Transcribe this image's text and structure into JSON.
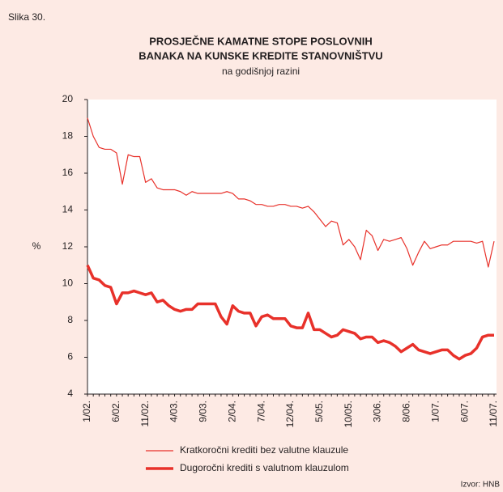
{
  "chart_data": {
    "type": "line",
    "label": "Slika 30.",
    "title": [
      "PROSJEČNE KAMATNE STOPE POSLOVNIH",
      "BANAKA NA KUNSKE KREDITE STANOVNIŠTVU"
    ],
    "subtitle": "na godišnjoj razini",
    "ylabel": "%",
    "source": "Izvor: HNB",
    "categories": [
      "1/02.",
      null,
      null,
      null,
      null,
      "6/02.",
      null,
      null,
      null,
      null,
      "11/02.",
      null,
      null,
      null,
      null,
      "4/03.",
      null,
      null,
      null,
      null,
      "9/03.",
      null,
      null,
      null,
      null,
      "2/04.",
      null,
      null,
      null,
      null,
      "7/04.",
      null,
      null,
      null,
      null,
      "12/04.",
      null,
      null,
      null,
      null,
      "5/05.",
      null,
      null,
      null,
      null,
      "10/05.",
      null,
      null,
      null,
      null,
      "3/06.",
      null,
      null,
      null,
      null,
      "8/06.",
      null,
      null,
      null,
      null,
      "1/07.",
      null,
      null,
      null,
      null,
      "6/07.",
      null,
      null,
      null,
      null,
      "11/07."
    ],
    "series": [
      {
        "name": "Kratkoročni krediti bez valutne klauzule",
        "color": "#e8312a",
        "width": 1.2,
        "values": [
          19.0,
          18.0,
          17.4,
          17.3,
          17.3,
          17.1,
          15.4,
          17.0,
          16.9,
          16.9,
          15.5,
          15.7,
          15.2,
          15.1,
          15.1,
          15.1,
          15.0,
          14.8,
          15.0,
          14.9,
          14.9,
          14.9,
          14.9,
          14.9,
          15.0,
          14.9,
          14.6,
          14.6,
          14.5,
          14.3,
          14.3,
          14.2,
          14.2,
          14.3,
          14.3,
          14.2,
          14.2,
          14.1,
          14.2,
          13.9,
          13.5,
          13.1,
          13.4,
          13.3,
          12.1,
          12.4,
          12.0,
          11.3,
          12.9,
          12.6,
          11.8,
          12.4,
          12.3,
          12.4,
          12.5,
          11.9,
          11.0,
          11.7,
          12.3,
          11.9,
          12.0,
          12.1,
          12.1,
          12.3,
          12.3,
          12.3,
          12.3,
          12.2,
          12.3,
          10.9,
          12.3
        ]
      },
      {
        "name": "Dugoročni krediti s valutnom klauzulom",
        "color": "#e8312a",
        "width": 3.5,
        "values": [
          11.0,
          10.3,
          10.2,
          9.9,
          9.8,
          8.9,
          9.5,
          9.5,
          9.6,
          9.5,
          9.4,
          9.5,
          9.0,
          9.1,
          8.8,
          8.6,
          8.5,
          8.6,
          8.6,
          8.9,
          8.9,
          8.9,
          8.9,
          8.2,
          7.8,
          8.8,
          8.5,
          8.4,
          8.4,
          7.7,
          8.2,
          8.3,
          8.1,
          8.1,
          8.1,
          7.7,
          7.6,
          7.6,
          8.4,
          7.5,
          7.5,
          7.3,
          7.1,
          7.2,
          7.5,
          7.4,
          7.3,
          7.0,
          7.1,
          7.1,
          6.8,
          6.9,
          6.8,
          6.6,
          6.3,
          6.5,
          6.7,
          6.4,
          6.3,
          6.2,
          6.3,
          6.4,
          6.4,
          6.1,
          5.9,
          6.1,
          6.2,
          6.5,
          7.1,
          7.2,
          7.2
        ]
      }
    ],
    "ylim": [
      4,
      20
    ],
    "yticks": [
      4,
      6,
      8,
      10,
      12,
      14,
      16,
      18,
      20
    ]
  }
}
